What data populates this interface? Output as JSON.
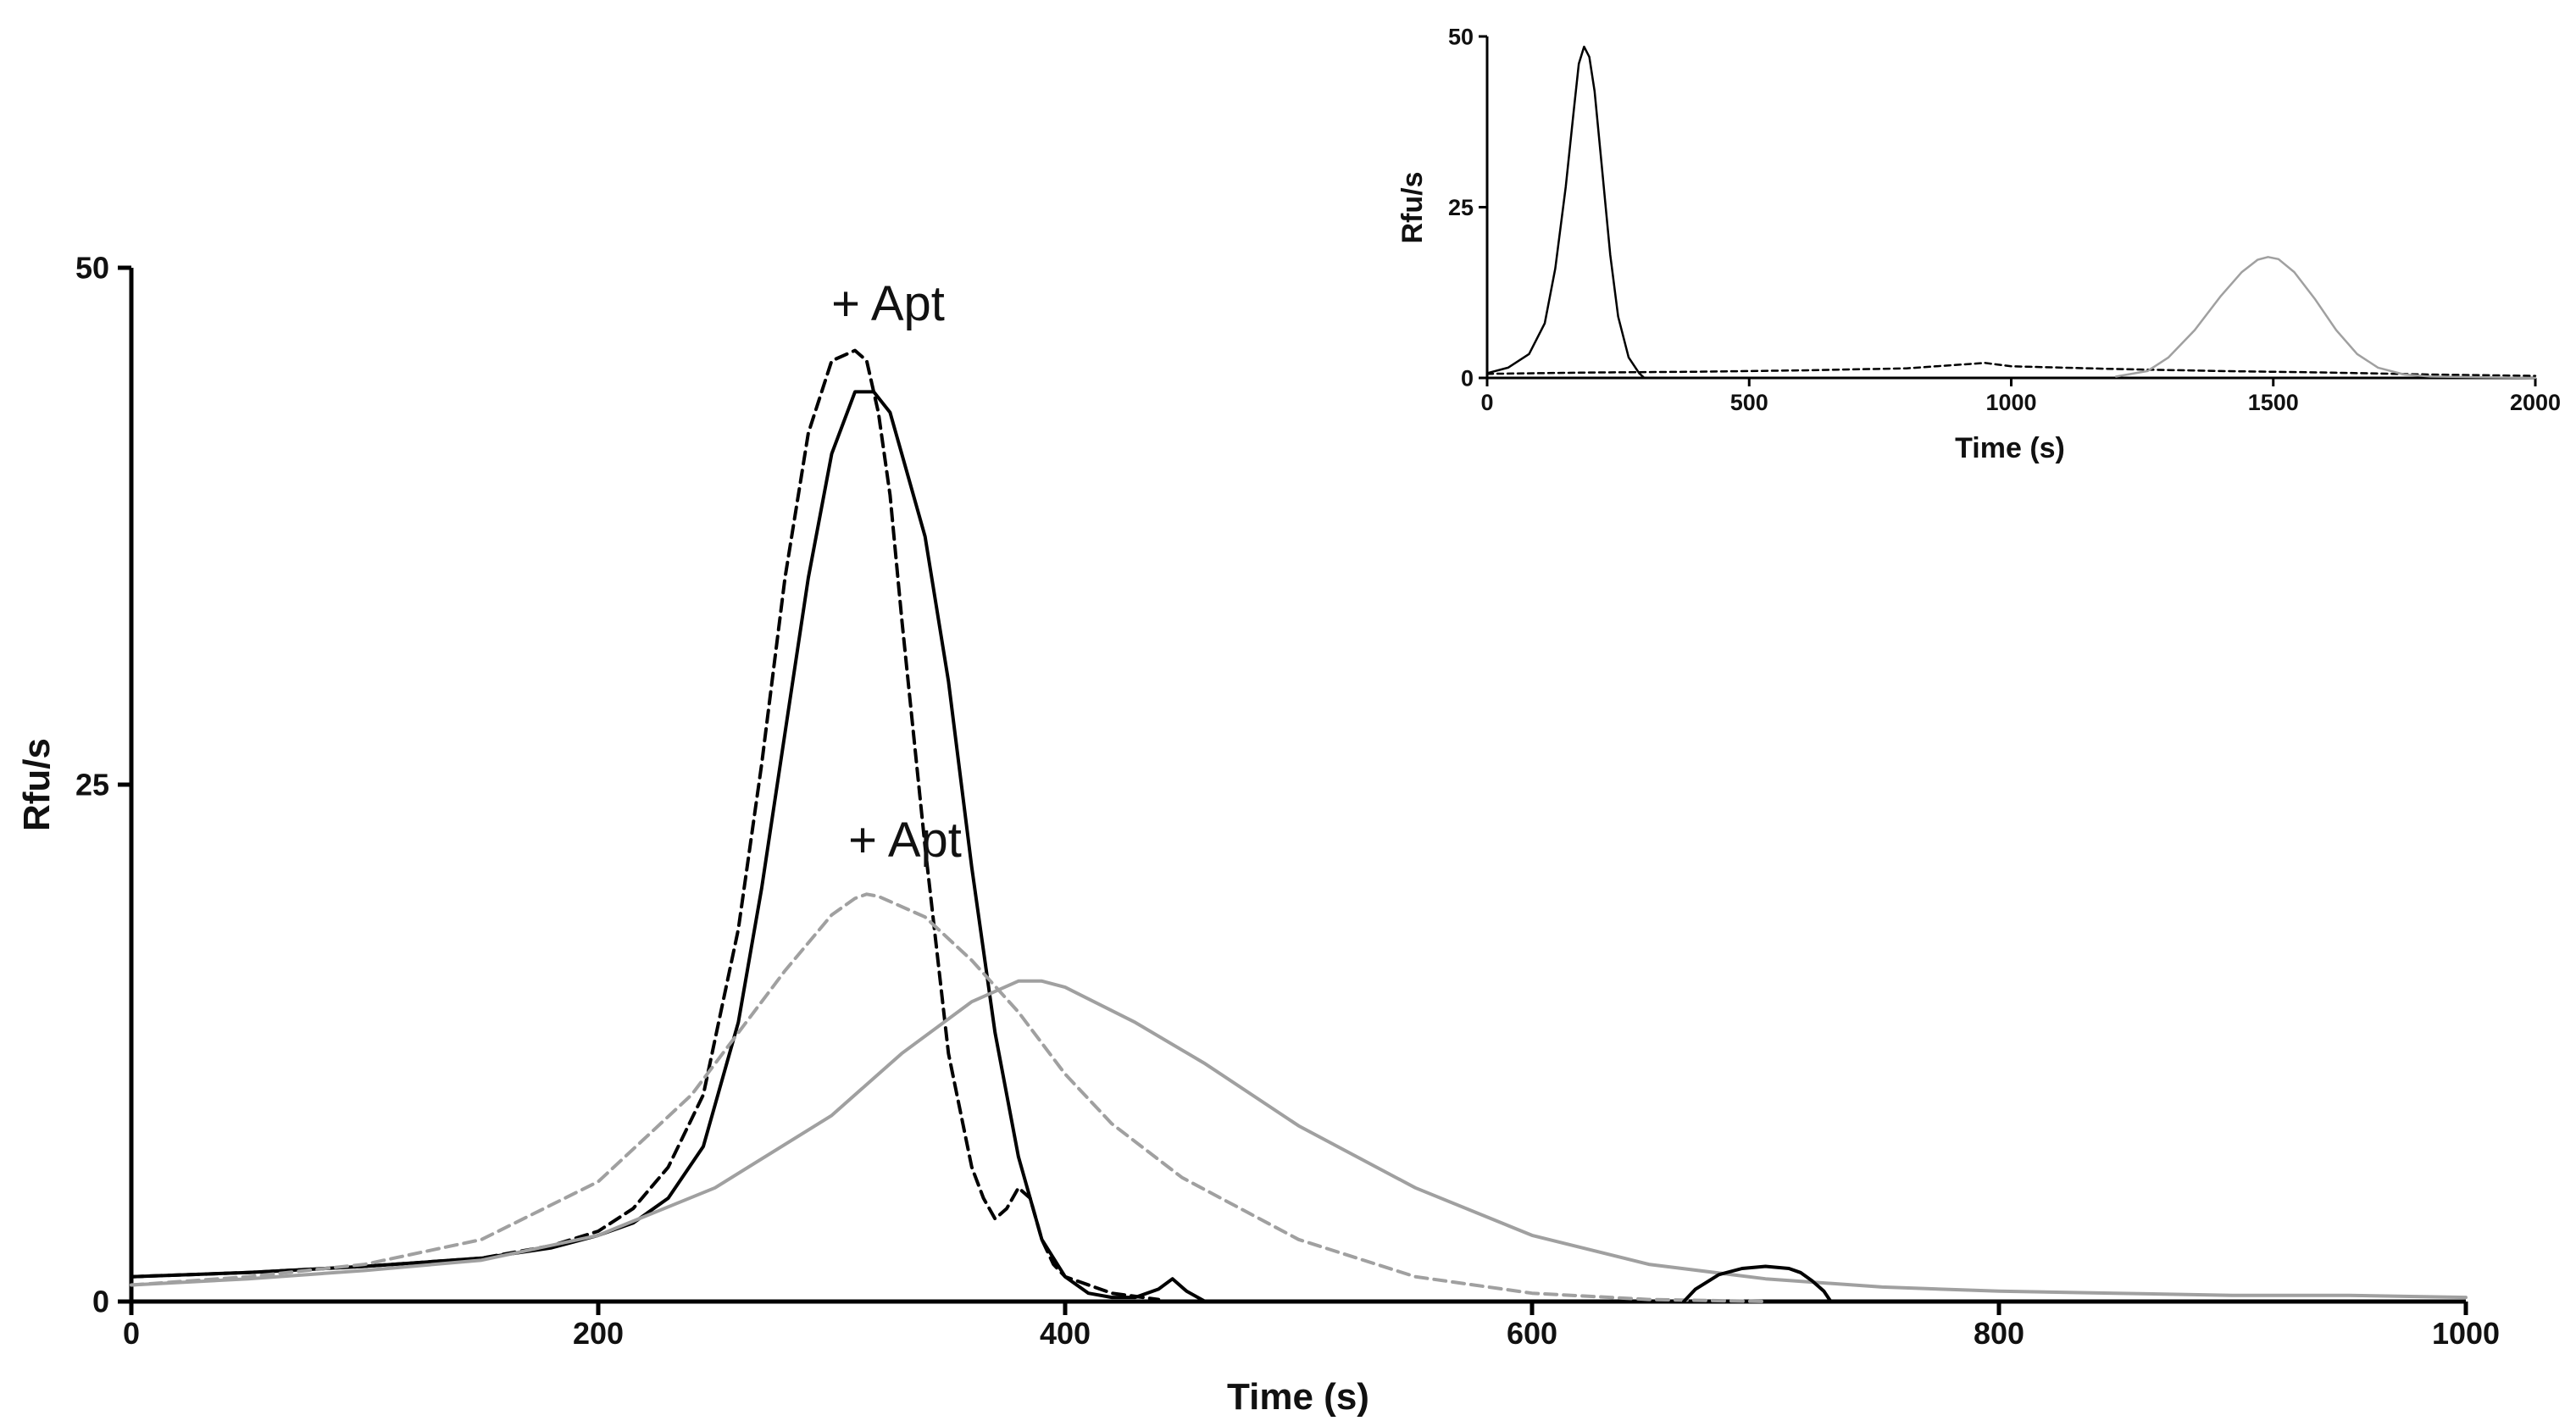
{
  "chart_data": [
    {
      "type": "line",
      "title": "",
      "xlabel": "Time (s)",
      "ylabel": "Rfu/s",
      "xlim": [
        0,
        1000
      ],
      "ylim": [
        0,
        50
      ],
      "xticks": [
        0,
        200,
        400,
        600,
        800,
        1000
      ],
      "yticks": [
        0,
        25,
        50
      ],
      "grid": false,
      "annotations": [
        {
          "text": "+ Apt",
          "x": 325,
          "y": 48
        },
        {
          "text": "+ Apt",
          "x": 332,
          "y": 22
        }
      ],
      "series": [
        {
          "name": "black solid",
          "color": "#000000",
          "style": "solid",
          "x": [
            0,
            50,
            100,
            150,
            180,
            200,
            215,
            230,
            245,
            260,
            270,
            280,
            290,
            300,
            310,
            318,
            325,
            330,
            340,
            350,
            360,
            370,
            380,
            390,
            400,
            410,
            420,
            430,
            440,
            446,
            452,
            460
          ],
          "y": [
            1.2,
            1.4,
            1.7,
            2.1,
            2.6,
            3.2,
            3.8,
            5.0,
            7.5,
            13.5,
            20.0,
            27.5,
            35.0,
            41.0,
            44.0,
            44.0,
            43.0,
            41.0,
            37.0,
            30.0,
            21.0,
            13.0,
            7.0,
            3.0,
            1.2,
            0.4,
            0.2,
            0.2,
            0.6,
            1.1,
            0.5,
            0.0
          ]
        },
        {
          "name": "black dashed",
          "color": "#000000",
          "style": "dashed",
          "x": [
            0,
            50,
            100,
            150,
            180,
            200,
            215,
            230,
            245,
            260,
            270,
            280,
            290,
            300,
            310,
            315,
            320,
            325,
            330,
            340,
            350,
            360,
            365,
            370,
            375,
            380,
            385,
            390,
            395,
            400,
            420,
            440
          ],
          "y": [
            1.2,
            1.4,
            1.7,
            2.1,
            2.7,
            3.4,
            4.5,
            6.5,
            10.0,
            18.0,
            26.0,
            35.0,
            42.0,
            45.5,
            46.0,
            45.5,
            43.0,
            39.0,
            33.0,
            22.0,
            12.0,
            6.5,
            5.0,
            4.0,
            4.5,
            5.5,
            5.0,
            3.0,
            1.8,
            1.2,
            0.4,
            0.1
          ]
        },
        {
          "name": "grey dashed",
          "color": "#a0a0a0",
          "style": "dashed",
          "x": [
            0,
            50,
            100,
            150,
            200,
            240,
            260,
            280,
            300,
            310,
            315,
            320,
            340,
            360,
            380,
            400,
            420,
            450,
            500,
            550,
            600,
            650,
            700
          ],
          "y": [
            0.8,
            1.2,
            1.8,
            3.0,
            5.8,
            10.0,
            13.0,
            16.0,
            18.7,
            19.5,
            19.7,
            19.6,
            18.6,
            16.5,
            14.0,
            11.0,
            8.6,
            6.0,
            3.0,
            1.2,
            0.4,
            0.1,
            0.0
          ]
        },
        {
          "name": "grey solid",
          "color": "#a0a0a0",
          "style": "solid",
          "x": [
            0,
            50,
            100,
            150,
            200,
            250,
            300,
            330,
            360,
            380,
            390,
            400,
            430,
            460,
            500,
            550,
            600,
            650,
            700,
            750,
            800,
            850,
            900,
            950,
            1000
          ],
          "y": [
            0.8,
            1.1,
            1.5,
            2.0,
            3.2,
            5.5,
            9.0,
            12.0,
            14.5,
            15.5,
            15.5,
            15.2,
            13.5,
            11.5,
            8.5,
            5.5,
            3.2,
            1.8,
            1.1,
            0.7,
            0.5,
            0.4,
            0.3,
            0.3,
            0.2
          ]
        },
        {
          "name": "black solid small peak",
          "color": "#000000",
          "style": "solid",
          "x": [
            665,
            670,
            680,
            690,
            700,
            710,
            715,
            720,
            725,
            728
          ],
          "y": [
            0.0,
            0.6,
            1.3,
            1.6,
            1.7,
            1.6,
            1.4,
            1.0,
            0.5,
            0.0
          ]
        }
      ]
    },
    {
      "type": "line",
      "title": "",
      "xlabel": "Time (s)",
      "ylabel": "Rfu/s",
      "xlim": [
        0,
        2000
      ],
      "ylim": [
        0,
        50
      ],
      "xticks": [
        0,
        500,
        1000,
        1500,
        2000
      ],
      "yticks": [
        0,
        25,
        50
      ],
      "grid": false,
      "legend": "none",
      "series": [
        {
          "name": "black solid peak",
          "color": "#000000",
          "style": "solid",
          "x": [
            0,
            40,
            80,
            110,
            130,
            150,
            165,
            175,
            185,
            195,
            205,
            220,
            235,
            250,
            270,
            290,
            300
          ],
          "y": [
            0.7,
            1.5,
            3.5,
            8.0,
            16.0,
            28.0,
            39.0,
            46.0,
            48.5,
            47.0,
            42.0,
            30.0,
            18.0,
            9.0,
            3.0,
            0.7,
            0.0
          ]
        },
        {
          "name": "black dashed baseline",
          "color": "#000000",
          "style": "dashed",
          "x": [
            0,
            200,
            400,
            600,
            800,
            950,
            1000,
            1200,
            1400,
            1600,
            1800,
            2000
          ],
          "y": [
            0.6,
            0.8,
            0.9,
            1.1,
            1.4,
            2.2,
            1.7,
            1.3,
            1.0,
            0.8,
            0.5,
            0.3
          ]
        },
        {
          "name": "grey solid peak",
          "color": "#a0a0a0",
          "style": "solid",
          "x": [
            1200,
            1260,
            1300,
            1350,
            1400,
            1440,
            1470,
            1490,
            1510,
            1540,
            1580,
            1620,
            1660,
            1700,
            1750,
            1800,
            2000
          ],
          "y": [
            0.2,
            1.0,
            3.0,
            7.0,
            12.0,
            15.5,
            17.3,
            17.7,
            17.4,
            15.5,
            11.5,
            7.0,
            3.5,
            1.5,
            0.5,
            0.2,
            0.0
          ]
        }
      ]
    }
  ]
}
